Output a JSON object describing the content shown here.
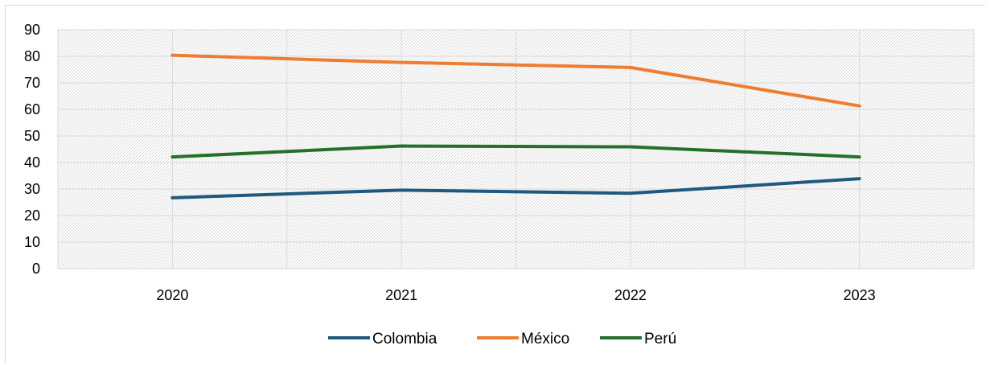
{
  "chart_data": {
    "type": "line",
    "title": "",
    "xlabel": "",
    "ylabel": "",
    "categories": [
      "2020",
      "2021",
      "2022",
      "2023"
    ],
    "ylim": [
      0,
      90
    ],
    "yticks": [
      0,
      10,
      20,
      30,
      40,
      50,
      60,
      70,
      80,
      90
    ],
    "grid": true,
    "legend_position": "bottom",
    "series": [
      {
        "name": "Colombia",
        "values": [
          26.7,
          29.6,
          28.4,
          33.9
        ],
        "color": "#1f5a7e"
      },
      {
        "name": "México",
        "values": [
          80.4,
          77.7,
          75.8,
          61.3
        ],
        "color": "#ed7d31"
      },
      {
        "name": "Perú",
        "values": [
          42.1,
          46.2,
          45.9,
          42.1
        ],
        "color": "#23702a"
      }
    ]
  }
}
